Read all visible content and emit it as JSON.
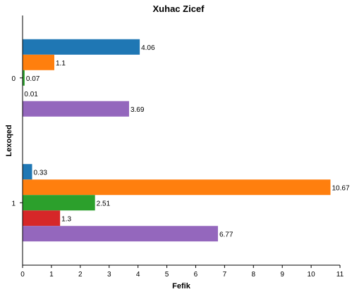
{
  "chart_data": {
    "type": "bar",
    "orientation": "horizontal",
    "title": "Xuhac Zicef",
    "xlabel": "Fefik",
    "ylabel": "Lexoqed",
    "categories": [
      "0",
      "1"
    ],
    "xlim": [
      0,
      11
    ],
    "xticks": [
      "0",
      "1",
      "2",
      "3",
      "4",
      "5",
      "6",
      "7",
      "8",
      "9",
      "10",
      "11"
    ],
    "grid": false,
    "legend": "none",
    "series": [
      {
        "color": "#1f77b4",
        "values": [
          4.06,
          0.33
        ]
      },
      {
        "color": "#ff7f0e",
        "values": [
          1.1,
          10.67
        ]
      },
      {
        "color": "#2ca02c",
        "values": [
          0.07,
          2.51
        ]
      },
      {
        "color": "#d62728",
        "values": [
          0.01,
          1.3
        ]
      },
      {
        "color": "#9467bd",
        "values": [
          3.69,
          6.77
        ]
      }
    ]
  }
}
